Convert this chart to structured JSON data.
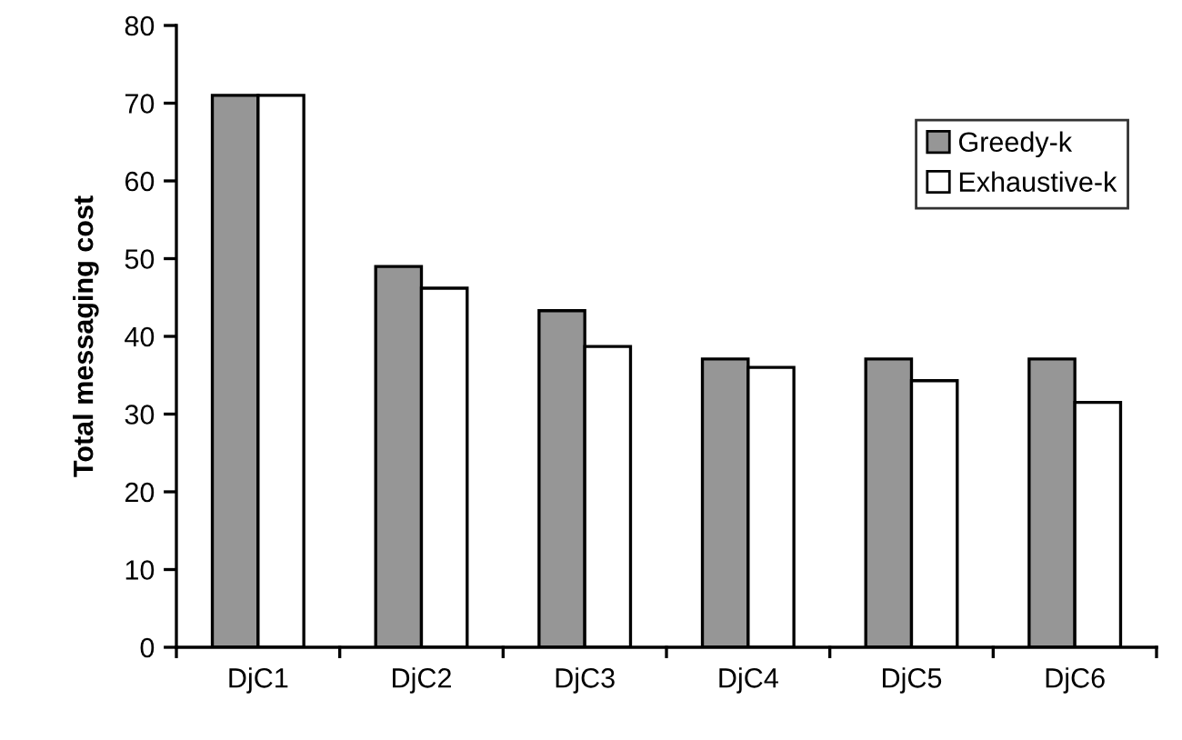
{
  "chart_data": {
    "type": "bar",
    "ylabel": "Total messaging cost",
    "categories": [
      "DjC1",
      "DjC2",
      "DjC3",
      "DjC4",
      "DjC5",
      "DjC6"
    ],
    "series": [
      {
        "name": "Greedy-k",
        "color": "#969696",
        "values": [
          71,
          49,
          43.3,
          37.1,
          37.1,
          37.1
        ]
      },
      {
        "name": "Exhaustive-k",
        "color": "#ffffff",
        "values": [
          71,
          46.2,
          38.7,
          36,
          34.3,
          31.5
        ]
      }
    ],
    "ylim": [
      0,
      80
    ],
    "yticks": [
      0,
      10,
      20,
      30,
      40,
      50,
      60,
      70,
      80
    ],
    "grid": false,
    "legend": "top right"
  }
}
